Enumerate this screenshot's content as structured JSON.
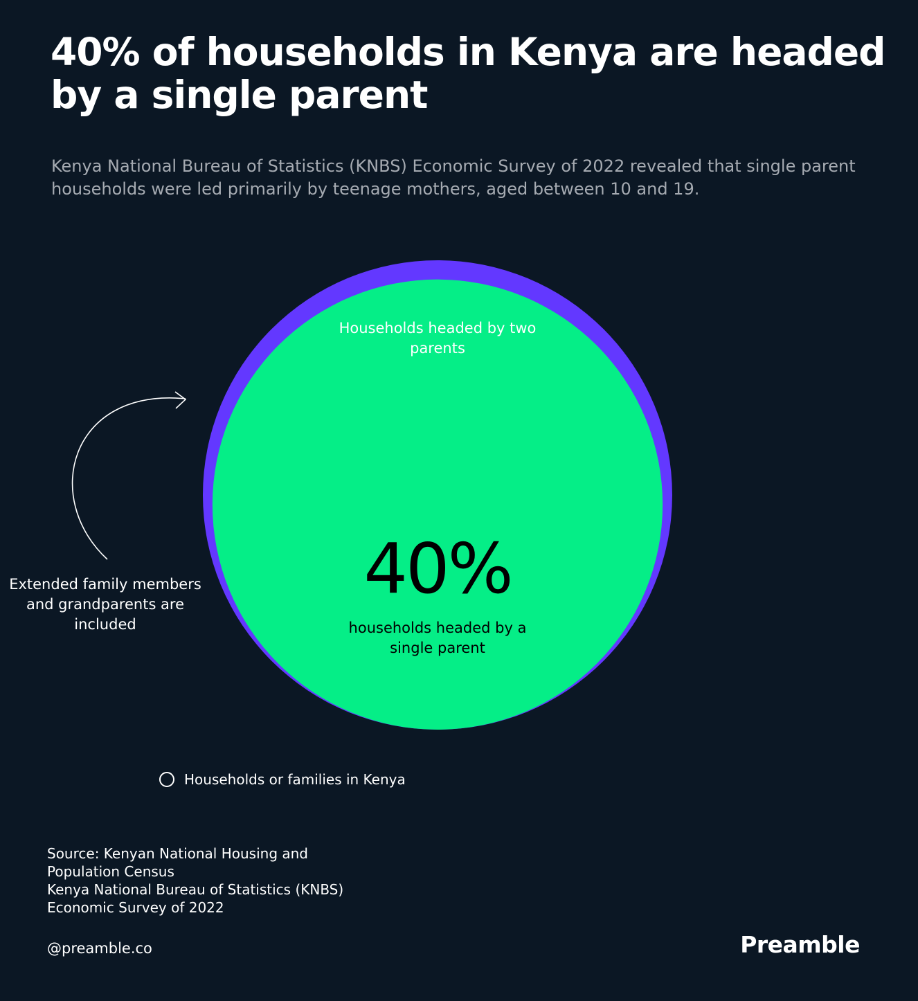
{
  "header": {
    "title": "40% of households in Kenya are headed by a single parent",
    "subtitle": "Kenya National Bureau of Statistics (KNBS) Economic Survey of 2022 revealed that single parent households were led primarily by teenage mothers, aged between 10 and 19."
  },
  "chart_data": {
    "type": "nested-circle",
    "title": "40% of households in Kenya are headed by a single parent",
    "unit": "%",
    "series": [
      {
        "name": "Households headed by two parents",
        "color": "#6338ff"
      },
      {
        "name": "households headed by a single parent",
        "value": 40,
        "display": "40%",
        "color": "#05ee87"
      }
    ],
    "annotation": "Extended family members and grandparents are included",
    "legend": {
      "label": "Households or families in Kenya",
      "position": "bottom-left"
    }
  },
  "colors": {
    "background": "#0b1724",
    "outer_circle": "#6338ff",
    "inner_circle": "#05ee87",
    "subtitle_text": "#a6abb2"
  },
  "footer": {
    "source_lines": [
      "Source: Kenyan National Housing and",
      "Population Census",
      "Kenya National Bureau of Statistics (KNBS)",
      "Economic Survey of 2022"
    ],
    "handle": "@preamble.co",
    "brand": "Preamble"
  }
}
